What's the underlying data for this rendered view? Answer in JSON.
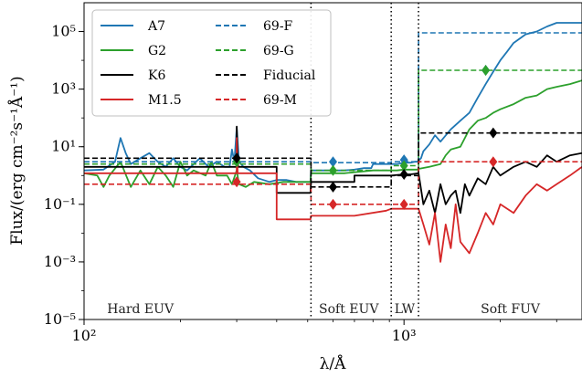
{
  "chart_data": {
    "type": "line",
    "xlabel": "λ/Å",
    "ylabel": "Flux/(erg cm⁻²s⁻¹Å⁻¹)",
    "x_scale": "log",
    "y_scale": "log",
    "xlim": [
      100,
      3600
    ],
    "ylim": [
      1e-05,
      1000000
    ],
    "x_ticks": [
      {
        "value": 100,
        "label": "10²"
      },
      {
        "value": 1000,
        "label": "10³"
      }
    ],
    "y_ticks": [
      {
        "value": 1e-05,
        "label": "10⁻⁵"
      },
      {
        "value": 0.001,
        "label": "10⁻³"
      },
      {
        "value": 0.1,
        "label": "10⁻¹"
      },
      {
        "value": 10,
        "label": "10¹"
      },
      {
        "value": 1000,
        "label": "10³"
      },
      {
        "value": 100000,
        "label": "10⁵"
      }
    ],
    "boundaries": [
      512,
      912,
      1110
    ],
    "regions": [
      {
        "label": "Hard EUV",
        "x": 150
      },
      {
        "label": "Soft EUV",
        "x": 672
      },
      {
        "label": "LW",
        "x": 1005
      },
      {
        "label": "Soft FUV",
        "x": 2150
      }
    ],
    "legend_position": "upper-left",
    "series": [
      {
        "name": "A7",
        "color": "#1f77b4",
        "style": "solid",
        "points": [
          [
            100,
            1.5
          ],
          [
            115,
            1.6
          ],
          [
            125,
            3
          ],
          [
            130,
            20
          ],
          [
            135,
            6
          ],
          [
            140,
            2.5
          ],
          [
            150,
            4
          ],
          [
            160,
            6
          ],
          [
            170,
            3
          ],
          [
            180,
            2
          ],
          [
            190,
            4
          ],
          [
            200,
            2
          ],
          [
            210,
            1.5
          ],
          [
            230,
            4
          ],
          [
            245,
            2
          ],
          [
            260,
            3
          ],
          [
            275,
            2
          ],
          [
            285,
            2
          ],
          [
            290,
            8
          ],
          [
            295,
            3
          ],
          [
            300,
            45
          ],
          [
            305,
            3
          ],
          [
            315,
            2
          ],
          [
            330,
            1.5
          ],
          [
            350,
            0.8
          ],
          [
            380,
            0.6
          ],
          [
            400,
            0.7
          ],
          [
            430,
            0.7
          ],
          [
            460,
            0.6
          ],
          [
            510,
            0.6
          ],
          [
            512,
            1.5
          ],
          [
            650,
            1.5
          ],
          [
            700,
            1.6
          ],
          [
            750,
            1.8
          ],
          [
            790,
            1.8
          ],
          [
            800,
            2.5
          ],
          [
            880,
            2.5
          ],
          [
            912,
            2.5
          ],
          [
            950,
            2.5
          ],
          [
            1000,
            2.8
          ],
          [
            1050,
            2.8
          ],
          [
            1080,
            3
          ],
          [
            1100,
            3
          ],
          [
            1130,
            4
          ],
          [
            1150,
            7
          ],
          [
            1200,
            12
          ],
          [
            1250,
            25
          ],
          [
            1300,
            15
          ],
          [
            1400,
            40
          ],
          [
            1500,
            80
          ],
          [
            1600,
            150
          ],
          [
            1700,
            500
          ],
          [
            1800,
            1500
          ],
          [
            1900,
            4000
          ],
          [
            2000,
            10000
          ],
          [
            2100,
            20000
          ],
          [
            2200,
            40000
          ],
          [
            2400,
            80000
          ],
          [
            2600,
            100000
          ],
          [
            2800,
            150000
          ],
          [
            3000,
            200000
          ],
          [
            3300,
            200000
          ],
          [
            3600,
            200000
          ]
        ]
      },
      {
        "name": "G2",
        "color": "#2ca02c",
        "style": "solid",
        "points": [
          [
            100,
            1.2
          ],
          [
            110,
            1.0
          ],
          [
            115,
            0.4
          ],
          [
            120,
            1
          ],
          [
            130,
            3
          ],
          [
            140,
            0.4
          ],
          [
            150,
            1.5
          ],
          [
            160,
            0.5
          ],
          [
            170,
            2
          ],
          [
            180,
            1
          ],
          [
            190,
            0.4
          ],
          [
            200,
            3
          ],
          [
            210,
            1
          ],
          [
            220,
            1.5
          ],
          [
            240,
            1
          ],
          [
            250,
            3
          ],
          [
            260,
            1
          ],
          [
            280,
            1
          ],
          [
            290,
            0.5
          ],
          [
            300,
            1.5
          ],
          [
            305,
            0.5
          ],
          [
            320,
            0.4
          ],
          [
            340,
            0.6
          ],
          [
            380,
            0.5
          ],
          [
            420,
            0.6
          ],
          [
            470,
            0.6
          ],
          [
            510,
            0.6
          ],
          [
            512,
            1.2
          ],
          [
            650,
            1.2
          ],
          [
            700,
            1.3
          ],
          [
            800,
            1.5
          ],
          [
            912,
            1.5
          ],
          [
            950,
            1.5
          ],
          [
            1000,
            1.6
          ],
          [
            1050,
            1.6
          ],
          [
            1100,
            1.6
          ],
          [
            1110,
            1.7
          ],
          [
            1200,
            2
          ],
          [
            1300,
            2.5
          ],
          [
            1350,
            5
          ],
          [
            1400,
            8
          ],
          [
            1500,
            10
          ],
          [
            1600,
            40
          ],
          [
            1700,
            80
          ],
          [
            1800,
            100
          ],
          [
            1900,
            150
          ],
          [
            2000,
            200
          ],
          [
            2200,
            300
          ],
          [
            2400,
            500
          ],
          [
            2600,
            600
          ],
          [
            2800,
            1000
          ],
          [
            3000,
            1200
          ],
          [
            3300,
            1500
          ],
          [
            3600,
            2000
          ]
        ]
      },
      {
        "name": "K6",
        "color": "#000000",
        "style": "solid",
        "points": [
          [
            100,
            2
          ],
          [
            300,
            2
          ],
          [
            300,
            50
          ],
          [
            303,
            2
          ],
          [
            400,
            2
          ],
          [
            400,
            0.25
          ],
          [
            510,
            0.25
          ],
          [
            512,
            0.6
          ],
          [
            700,
            0.6
          ],
          [
            700,
            1.0
          ],
          [
            880,
            1.0
          ],
          [
            912,
            1.0
          ],
          [
            1000,
            1.1
          ],
          [
            1050,
            1.1
          ],
          [
            1110,
            1.2
          ],
          [
            1150,
            0.1
          ],
          [
            1200,
            0.3
          ],
          [
            1250,
            0.05
          ],
          [
            1300,
            0.5
          ],
          [
            1350,
            0.1
          ],
          [
            1400,
            0.2
          ],
          [
            1450,
            0.3
          ],
          [
            1500,
            0.05
          ],
          [
            1550,
            0.5
          ],
          [
            1600,
            0.2
          ],
          [
            1700,
            0.8
          ],
          [
            1800,
            0.5
          ],
          [
            1900,
            2
          ],
          [
            2000,
            1
          ],
          [
            2200,
            2
          ],
          [
            2400,
            3
          ],
          [
            2600,
            2
          ],
          [
            2800,
            5
          ],
          [
            3000,
            3
          ],
          [
            3300,
            5
          ],
          [
            3600,
            6
          ]
        ]
      },
      {
        "name": "M1.5",
        "color": "#d62728",
        "style": "solid",
        "points": [
          [
            100,
            1.2
          ],
          [
            300,
            1.2
          ],
          [
            300,
            20
          ],
          [
            302,
            1.2
          ],
          [
            400,
            1.2
          ],
          [
            400,
            0.03
          ],
          [
            510,
            0.03
          ],
          [
            512,
            0.04
          ],
          [
            700,
            0.04
          ],
          [
            880,
            0.06
          ],
          [
            912,
            0.07
          ],
          [
            1000,
            0.07
          ],
          [
            1110,
            0.07
          ],
          [
            1150,
            0.02
          ],
          [
            1200,
            0.004
          ],
          [
            1250,
            0.05
          ],
          [
            1300,
            0.001
          ],
          [
            1350,
            0.02
          ],
          [
            1400,
            0.003
          ],
          [
            1450,
            0.1
          ],
          [
            1500,
            0.005
          ],
          [
            1600,
            0.002
          ],
          [
            1700,
            0.01
          ],
          [
            1800,
            0.05
          ],
          [
            1900,
            0.02
          ],
          [
            2000,
            0.1
          ],
          [
            2200,
            0.05
          ],
          [
            2400,
            0.2
          ],
          [
            2600,
            0.5
          ],
          [
            2800,
            0.3
          ],
          [
            3000,
            0.5
          ],
          [
            3300,
            1
          ],
          [
            3600,
            2
          ]
        ]
      },
      {
        "name": "69-F",
        "color": "#1f77b4",
        "style": "dashed",
        "points": [
          [
            100,
            3
          ],
          [
            512,
            3
          ],
          [
            512,
            2.8
          ],
          [
            912,
            2.8
          ],
          [
            912,
            3
          ],
          [
            1110,
            3
          ],
          [
            1110,
            90000
          ],
          [
            3600,
            90000
          ]
        ]
      },
      {
        "name": "69-G",
        "color": "#2ca02c",
        "style": "dashed",
        "points": [
          [
            100,
            2.5
          ],
          [
            512,
            2.5
          ],
          [
            512,
            1.5
          ],
          [
            912,
            1.5
          ],
          [
            912,
            2.2
          ],
          [
            1110,
            2.2
          ],
          [
            1110,
            4500
          ],
          [
            3600,
            4500
          ]
        ]
      },
      {
        "name": "Fiducial",
        "color": "#000000",
        "style": "dashed",
        "points": [
          [
            100,
            4
          ],
          [
            512,
            4
          ],
          [
            512,
            0.4
          ],
          [
            912,
            0.4
          ],
          [
            912,
            1
          ],
          [
            1110,
            1
          ],
          [
            1110,
            30
          ],
          [
            3600,
            30
          ]
        ]
      },
      {
        "name": "69-M",
        "color": "#d62728",
        "style": "dashed",
        "points": [
          [
            100,
            0.5
          ],
          [
            512,
            0.5
          ],
          [
            512,
            0.1
          ],
          [
            912,
            0.1
          ],
          [
            912,
            0.1
          ],
          [
            1110,
            0.1
          ],
          [
            1110,
            3
          ],
          [
            3600,
            3
          ]
        ]
      }
    ],
    "markers": [
      {
        "series": "A7",
        "color": "#1f77b4",
        "points": [
          [
            300,
            4
          ],
          [
            600,
            3
          ],
          [
            1000,
            3.5
          ],
          [
            1800,
            4500
          ]
        ]
      },
      {
        "series": "G2",
        "color": "#2ca02c",
        "points": [
          [
            300,
            3
          ],
          [
            600,
            1.5
          ],
          [
            1000,
            2.2
          ],
          [
            1800,
            4500
          ]
        ]
      },
      {
        "series": "K6",
        "color": "#000000",
        "points": [
          [
            300,
            4
          ],
          [
            600,
            0.4
          ],
          [
            1000,
            1.1
          ],
          [
            1900,
            30
          ]
        ]
      },
      {
        "series": "M1.5",
        "color": "#d62728",
        "points": [
          [
            300,
            0.6
          ],
          [
            600,
            0.1
          ],
          [
            1000,
            0.1
          ],
          [
            1900,
            3
          ]
        ]
      }
    ]
  }
}
